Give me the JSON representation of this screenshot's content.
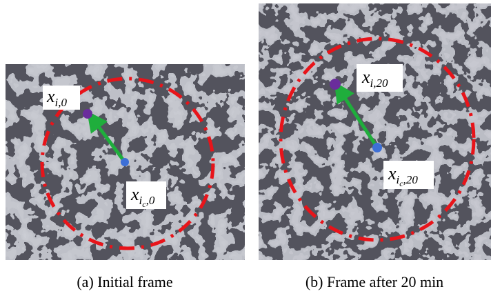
{
  "panels": [
    {
      "point_label": {
        "base": "x",
        "sub": "i,0"
      },
      "center_label": {
        "base": "x",
        "sub": "i",
        "subsub": "c",
        "tail": ",0"
      },
      "caption": "(a) Initial frame"
    },
    {
      "point_label": {
        "base": "x",
        "sub": "i,20"
      },
      "center_label": {
        "base": "x",
        "sub": "i",
        "subsub": "c",
        "tail": ",20"
      },
      "caption": "(b) Frame after 20 min"
    }
  ]
}
